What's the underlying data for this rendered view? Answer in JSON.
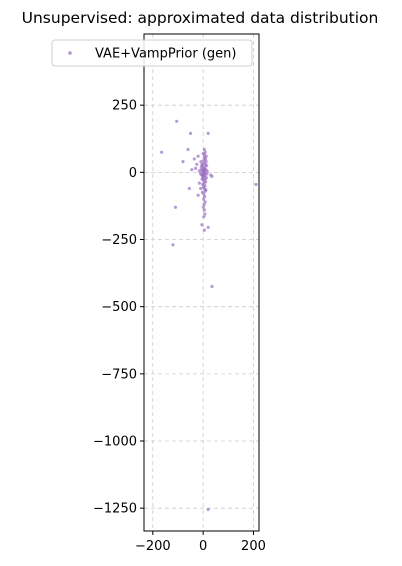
{
  "chart_data": {
    "type": "scatter",
    "title": "Unsupervised: approximated data distribution",
    "xlabel": "",
    "ylabel": "",
    "xlim": [
      -235,
      222
    ],
    "ylim": [
      -1335,
      515
    ],
    "xticks": [
      -200,
      0,
      200
    ],
    "xtick_labels": [
      "−200",
      "0",
      "200"
    ],
    "yticks": [
      250,
      0,
      -250,
      -500,
      -750,
      -1000,
      -1250
    ],
    "ytick_labels": [
      "250",
      "0",
      "−250",
      "−500",
      "−750",
      "−1000",
      "−1250"
    ],
    "grid": true,
    "legend": {
      "position": "upper-center",
      "entries": [
        "VAE+VampPrior (gen)"
      ]
    },
    "colors": {
      "series": "#9467bd",
      "grid": "#cccccc"
    },
    "series": [
      {
        "name": "VAE+VampPrior (gen)",
        "points": [
          [
            -105,
            190
          ],
          [
            -165,
            75
          ],
          [
            20,
            145
          ],
          [
            -50,
            145
          ],
          [
            -60,
            85
          ],
          [
            -80,
            40
          ],
          [
            -35,
            50
          ],
          [
            -25,
            30
          ],
          [
            -30,
            15
          ],
          [
            -20,
            60
          ],
          [
            -45,
            10
          ],
          [
            -15,
            5
          ],
          [
            -55,
            -60
          ],
          [
            -20,
            -85
          ],
          [
            -15,
            -40
          ],
          [
            -10,
            -60
          ],
          [
            -110,
            -130
          ],
          [
            -120,
            -270
          ],
          [
            -5,
            -195
          ],
          [
            5,
            -215
          ],
          [
            20,
            -205
          ],
          [
            30,
            -10
          ],
          [
            35,
            -15
          ],
          [
            210,
            -45
          ],
          [
            35,
            -425
          ],
          [
            20,
            -1255
          ],
          [
            5,
            85
          ],
          [
            8,
            75
          ],
          [
            6,
            65
          ],
          [
            4,
            55
          ],
          [
            10,
            50
          ],
          [
            3,
            45
          ],
          [
            12,
            40
          ],
          [
            2,
            35
          ],
          [
            9,
            30
          ],
          [
            -3,
            25
          ],
          [
            7,
            20
          ],
          [
            1,
            15
          ],
          [
            11,
            10
          ],
          [
            -2,
            5
          ],
          [
            6,
            0
          ],
          [
            0,
            -5
          ],
          [
            9,
            -10
          ],
          [
            3,
            -15
          ],
          [
            -1,
            -20
          ],
          [
            8,
            -25
          ],
          [
            2,
            -30
          ],
          [
            10,
            -35
          ],
          [
            4,
            -40
          ],
          [
            -2,
            -45
          ],
          [
            7,
            -50
          ],
          [
            1,
            -55
          ],
          [
            5,
            -60
          ],
          [
            9,
            -70
          ],
          [
            3,
            -80
          ],
          [
            6,
            -90
          ],
          [
            2,
            -100
          ],
          [
            8,
            -110
          ],
          [
            4,
            -120
          ],
          [
            1,
            -130
          ],
          [
            5,
            -140
          ],
          [
            7,
            -155
          ],
          [
            3,
            -165
          ],
          [
            -5,
            30
          ],
          [
            -8,
            10
          ],
          [
            -6,
            -10
          ],
          [
            -4,
            -25
          ],
          [
            -7,
            20
          ],
          [
            14,
            25
          ],
          [
            15,
            -5
          ],
          [
            13,
            -20
          ],
          [
            12,
            60
          ],
          [
            -9,
            40
          ],
          [
            16,
            5
          ],
          [
            -10,
            -5
          ],
          [
            11,
            -65
          ],
          [
            -3,
            -75
          ],
          [
            0,
            70
          ],
          [
            2,
            5
          ],
          [
            4,
            -2
          ],
          [
            6,
            12
          ],
          [
            -1,
            -12
          ]
        ]
      }
    ]
  }
}
